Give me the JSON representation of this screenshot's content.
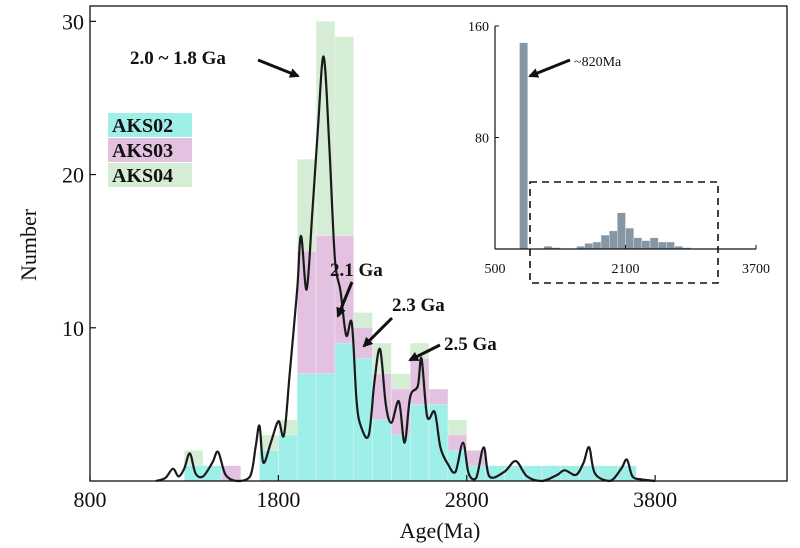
{
  "chart_data": [
    {
      "type": "bar",
      "title": "",
      "xlabel": "Age(Ma)",
      "ylabel": "Number",
      "xlim": [
        800,
        4500
      ],
      "ylim": [
        0,
        31
      ],
      "xticks": [
        800,
        1800,
        2800,
        3800
      ],
      "yticks": [
        10,
        20,
        30
      ],
      "x_tick_labels": [
        "800",
        "1800",
        "2800",
        "3800"
      ],
      "y_tick_labels": [
        "10",
        "20",
        "30"
      ],
      "bin_width": 100,
      "legend": {
        "position": "upper-left",
        "entries": [
          {
            "name": "AKS02",
            "color": "#9fefe9"
          },
          {
            "name": "AKS03",
            "color": "#e3c2e1"
          },
          {
            "name": "AKS04",
            "color": "#d5ecd5"
          }
        ]
      },
      "series": [
        {
          "name": "AKS04",
          "color": "#d5ecd5",
          "bins": [
            [
              1300,
              2
            ],
            [
              1400,
              1
            ],
            [
              1500,
              1
            ],
            [
              1600,
              0
            ],
            [
              1700,
              3
            ],
            [
              1800,
              4
            ],
            [
              1900,
              21
            ],
            [
              2000,
              30
            ],
            [
              2100,
              29
            ],
            [
              2200,
              11
            ],
            [
              2300,
              9
            ],
            [
              2400,
              7
            ],
            [
              2500,
              9
            ],
            [
              2600,
              6
            ],
            [
              2700,
              4
            ],
            [
              2800,
              2
            ],
            [
              2900,
              1
            ],
            [
              3000,
              1
            ],
            [
              3100,
              1
            ],
            [
              3200,
              1
            ],
            [
              3300,
              1
            ],
            [
              3400,
              1
            ],
            [
              3500,
              1
            ],
            [
              3600,
              1
            ]
          ]
        },
        {
          "name": "AKS03",
          "color": "#e3c2e1",
          "bins": [
            [
              1300,
              1
            ],
            [
              1400,
              1
            ],
            [
              1500,
              1
            ],
            [
              1600,
              0
            ],
            [
              1700,
              2
            ],
            [
              1800,
              3
            ],
            [
              1900,
              15
            ],
            [
              2000,
              16
            ],
            [
              2100,
              16
            ],
            [
              2200,
              10
            ],
            [
              2300,
              7
            ],
            [
              2400,
              6
            ],
            [
              2500,
              8
            ],
            [
              2600,
              6
            ],
            [
              2700,
              3
            ],
            [
              2800,
              2
            ],
            [
              2900,
              1
            ],
            [
              3000,
              1
            ],
            [
              3100,
              0
            ],
            [
              3200,
              1
            ],
            [
              3300,
              1
            ],
            [
              3400,
              1
            ],
            [
              3500,
              0
            ],
            [
              3600,
              1
            ]
          ]
        },
        {
          "name": "AKS02",
          "color": "#9fefe9",
          "bins": [
            [
              1300,
              1
            ],
            [
              1400,
              1
            ],
            [
              1500,
              0
            ],
            [
              1600,
              0
            ],
            [
              1700,
              2
            ],
            [
              1800,
              3
            ],
            [
              1900,
              7
            ],
            [
              2000,
              7
            ],
            [
              2100,
              9
            ],
            [
              2200,
              8
            ],
            [
              2300,
              4
            ],
            [
              2400,
              3
            ],
            [
              2500,
              5
            ],
            [
              2600,
              5
            ],
            [
              2700,
              2
            ],
            [
              2800,
              1
            ],
            [
              2900,
              1
            ],
            [
              3000,
              1
            ],
            [
              3100,
              1
            ],
            [
              3200,
              1
            ],
            [
              3300,
              1
            ],
            [
              3400,
              1
            ],
            [
              3500,
              1
            ],
            [
              3600,
              1
            ]
          ]
        }
      ],
      "density_curve": {
        "name": "probability density",
        "color": "#1a1a1a",
        "points": [
          [
            1150,
            0
          ],
          [
            1200,
            0.2
          ],
          [
            1240,
            0.8
          ],
          [
            1270,
            0.3
          ],
          [
            1300,
            0.8
          ],
          [
            1330,
            1.8
          ],
          [
            1360,
            0.5
          ],
          [
            1400,
            0.3
          ],
          [
            1450,
            1.2
          ],
          [
            1480,
            1.9
          ],
          [
            1520,
            0.4
          ],
          [
            1580,
            0
          ],
          [
            1650,
            0.3
          ],
          [
            1680,
            2.3
          ],
          [
            1700,
            3.6
          ],
          [
            1720,
            1.2
          ],
          [
            1760,
            2.5
          ],
          [
            1800,
            3.9
          ],
          [
            1830,
            3
          ],
          [
            1860,
            7
          ],
          [
            1900,
            12.5
          ],
          [
            1920,
            16
          ],
          [
            1950,
            12.5
          ],
          [
            1980,
            17.5
          ],
          [
            2010,
            23
          ],
          [
            2040,
            27.7
          ],
          [
            2070,
            22
          ],
          [
            2100,
            14.5
          ],
          [
            2130,
            12.4
          ],
          [
            2160,
            9.5
          ],
          [
            2190,
            10.3
          ],
          [
            2215,
            5.2
          ],
          [
            2240,
            3.5
          ],
          [
            2280,
            3
          ],
          [
            2310,
            6.5
          ],
          [
            2340,
            8.6
          ],
          [
            2370,
            5
          ],
          [
            2400,
            3.8
          ],
          [
            2440,
            5.2
          ],
          [
            2470,
            2.5
          ],
          [
            2500,
            5.5
          ],
          [
            2540,
            6.2
          ],
          [
            2560,
            8
          ],
          [
            2590,
            4.2
          ],
          [
            2630,
            4.5
          ],
          [
            2660,
            2.2
          ],
          [
            2700,
            1.1
          ],
          [
            2740,
            0.6
          ],
          [
            2780,
            2.5
          ],
          [
            2810,
            0.5
          ],
          [
            2850,
            0.2
          ],
          [
            2890,
            2.2
          ],
          [
            2920,
            0.3
          ],
          [
            3000,
            0.6
          ],
          [
            3060,
            1.3
          ],
          [
            3120,
            0.3
          ],
          [
            3200,
            0
          ],
          [
            3280,
            0.4
          ],
          [
            3320,
            0.7
          ],
          [
            3380,
            0.4
          ],
          [
            3420,
            1.2
          ],
          [
            3450,
            2.2
          ],
          [
            3480,
            0.5
          ],
          [
            3560,
            0
          ],
          [
            3620,
            0.8
          ],
          [
            3650,
            1.4
          ],
          [
            3680,
            0.3
          ],
          [
            3730,
            0.1
          ],
          [
            3800,
            0
          ]
        ]
      },
      "annotations": [
        {
          "text": "2.0 ~ 1.8 Ga",
          "x": 2040,
          "y": 27.5
        },
        {
          "text": "2.1 Ga",
          "x": 2190,
          "y": 12.5
        },
        {
          "text": "2.3 Ga",
          "x": 2330,
          "y": 8.8
        },
        {
          "text": "2.5 Ga",
          "x": 2560,
          "y": 8
        }
      ]
    },
    {
      "type": "bar",
      "title": "",
      "xlabel": "",
      "ylabel": "",
      "xlim": [
        500,
        3700
      ],
      "ylim": [
        0,
        160
      ],
      "xticks": [
        500,
        2100,
        3700
      ],
      "yticks": [
        80,
        160
      ],
      "x_tick_labels": [
        "500",
        "2100",
        "3700"
      ],
      "y_tick_labels": [
        "80",
        "160"
      ],
      "color": "#8796a4",
      "bin_width": 100,
      "bins": [
        [
          800,
          148
        ],
        [
          1100,
          2
        ],
        [
          1200,
          1
        ],
        [
          1500,
          2
        ],
        [
          1600,
          4
        ],
        [
          1700,
          5
        ],
        [
          1800,
          10
        ],
        [
          1900,
          13
        ],
        [
          2000,
          26
        ],
        [
          2100,
          15
        ],
        [
          2200,
          8
        ],
        [
          2300,
          6
        ],
        [
          2400,
          8
        ],
        [
          2500,
          5
        ],
        [
          2600,
          5
        ],
        [
          2700,
          2
        ],
        [
          2800,
          1
        ]
      ],
      "annotations": [
        {
          "text": "~820Ma",
          "x": 820,
          "y": 148
        }
      ],
      "highlight_box": {
        "x_range": [
          1000,
          3600
        ],
        "y_range": [
          -20,
          60
        ]
      }
    }
  ]
}
